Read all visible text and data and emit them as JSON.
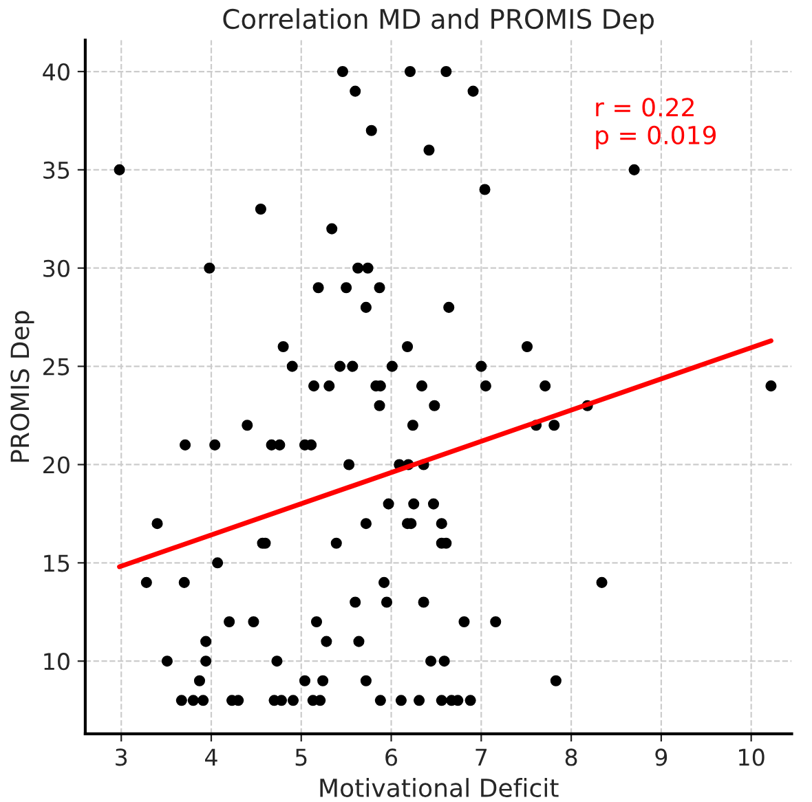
{
  "chart_data": {
    "type": "scatter",
    "title": "Correlation MD and PROMIS Dep",
    "xlabel": "Motivational Deficit",
    "ylabel": "PROMIS Dep",
    "annotations": [
      "r = 0.22\np = 0.019"
    ],
    "series": [
      {
        "color": "#000000",
        "marker": "circle",
        "x": [
          5.46,
          6.21,
          6.61,
          5.6,
          6.91,
          5.78,
          6.42,
          2.98,
          8.7,
          7.04,
          4.55,
          5.34,
          3.98,
          5.63,
          5.74,
          5.19,
          5.5,
          5.87,
          5.72,
          6.64,
          4.8,
          6.18,
          7.51,
          4.9,
          5.43,
          5.57,
          6.01,
          7.0,
          5.14,
          5.31,
          5.83,
          5.88,
          6.34,
          7.05,
          7.71,
          10.22,
          5.87,
          6.48,
          8.18,
          4.4,
          6.24,
          7.61,
          7.81,
          3.71,
          4.04,
          4.67,
          4.76,
          5.04,
          5.11,
          5.53,
          6.09,
          6.19,
          6.36,
          5.97,
          6.25,
          6.47,
          3.4,
          5.72,
          6.18,
          6.22,
          6.56,
          4.57,
          4.6,
          5.39,
          6.56,
          6.61,
          4.07,
          3.28,
          3.7,
          5.92,
          8.34,
          5.6,
          5.95,
          6.36,
          4.2,
          4.47,
          5.17,
          6.81,
          7.16,
          3.94,
          5.28,
          5.64,
          3.51,
          3.94,
          4.73,
          6.44,
          6.59,
          3.87,
          5.04,
          5.24,
          5.72,
          7.83,
          3.67,
          3.8,
          3.91,
          4.23,
          4.3,
          4.7,
          4.78,
          4.91,
          5.13,
          5.21,
          5.88,
          6.11,
          6.31,
          6.56,
          6.67,
          6.74,
          6.88
        ],
        "values": [
          40,
          40,
          40,
          39,
          39,
          37,
          36,
          35,
          35,
          34,
          33,
          32,
          30,
          30,
          30,
          29,
          29,
          29,
          28,
          28,
          26,
          26,
          26,
          25,
          25,
          25,
          25,
          25,
          24,
          24,
          24,
          24,
          24,
          24,
          24,
          24,
          23,
          23,
          23,
          22,
          22,
          22,
          22,
          21,
          21,
          21,
          21,
          21,
          21,
          20,
          20,
          20,
          20,
          18,
          18,
          18,
          17,
          17,
          17,
          17,
          17,
          16,
          16,
          16,
          16,
          16,
          15,
          14,
          14,
          14,
          14,
          13,
          13,
          13,
          12,
          12,
          12,
          12,
          12,
          11,
          11,
          11,
          10,
          10,
          10,
          10,
          10,
          9,
          9,
          9,
          9,
          9,
          8,
          8,
          8,
          8,
          8,
          8,
          8,
          8,
          8,
          8,
          8,
          8,
          8,
          8,
          8,
          8,
          8
        ]
      },
      {
        "type": "line",
        "color": "#ff0000",
        "line_style": "solid",
        "x": [
          2.98,
          10.22
        ],
        "values": [
          14.8,
          26.3
        ]
      }
    ],
    "xlim": [
      2.6,
      10.45
    ],
    "ylim": [
      6.3,
      41.6
    ],
    "xticks": [
      3,
      4,
      5,
      6,
      7,
      8,
      9,
      10
    ],
    "yticks": [
      10,
      15,
      20,
      25,
      30,
      35,
      40
    ],
    "grid": true,
    "legend": false
  }
}
